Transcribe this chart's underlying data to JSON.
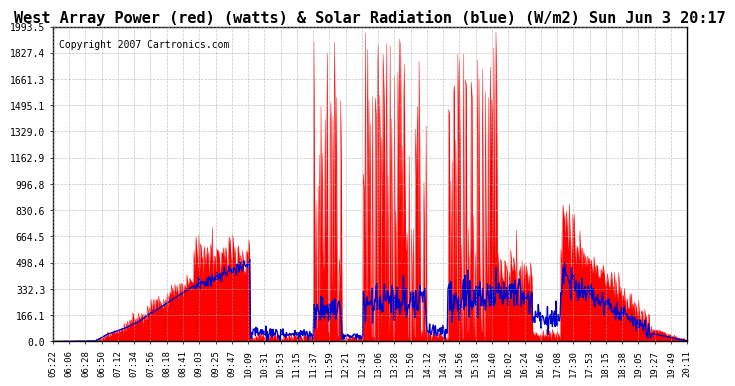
{
  "title": "West Array Power (red) (watts) & Solar Radiation (blue) (W/m2) Sun Jun 3 20:17",
  "copyright": "Copyright 2007 Cartronics.com",
  "y_max": 1993.5,
  "y_min": 0.0,
  "y_ticks": [
    0.0,
    166.1,
    332.3,
    498.4,
    664.5,
    830.6,
    996.8,
    1162.9,
    1329.0,
    1495.1,
    1661.3,
    1827.4,
    1993.5
  ],
  "x_labels": [
    "05:22",
    "06:06",
    "06:28",
    "06:50",
    "07:12",
    "07:34",
    "07:56",
    "08:18",
    "08:41",
    "09:03",
    "09:25",
    "09:47",
    "10:09",
    "10:31",
    "10:53",
    "11:15",
    "11:37",
    "11:59",
    "12:21",
    "12:43",
    "13:06",
    "13:28",
    "13:50",
    "14:12",
    "14:34",
    "14:56",
    "15:18",
    "15:40",
    "16:02",
    "16:24",
    "16:46",
    "17:08",
    "17:30",
    "17:53",
    "18:15",
    "18:38",
    "19:05",
    "19:27",
    "19:49",
    "20:11"
  ],
  "bg_color": "#ffffff",
  "plot_bg": "#ffffff",
  "red_color": "#ff0000",
  "blue_color": "#0000cc",
  "grid_color": "#aaaaaa",
  "title_fontsize": 11,
  "copyright_fontsize": 7
}
